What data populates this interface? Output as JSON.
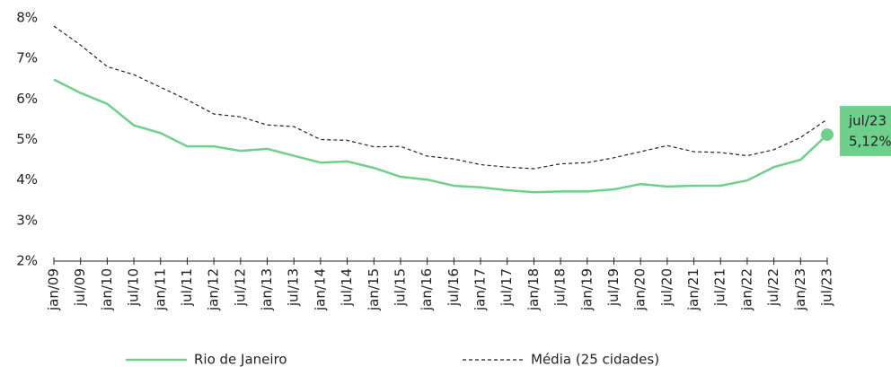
{
  "chart_data": {
    "type": "line",
    "categories": [
      "jan/09",
      "jul/09",
      "jan/10",
      "jul/10",
      "jan/11",
      "jul/11",
      "jan/12",
      "jul/12",
      "jan/13",
      "jul/13",
      "jan/14",
      "jul/14",
      "jan/15",
      "jul/15",
      "jan/16",
      "jul/16",
      "jan/17",
      "jul/17",
      "jan/18",
      "jul/18",
      "jan/19",
      "jul/19",
      "jan/20",
      "jul/20",
      "jan/21",
      "jul/21",
      "jan/22",
      "jul/22",
      "jan/23",
      "jul/23"
    ],
    "series": [
      {
        "name": "Rio de Janeiro",
        "color": "#6fd08c",
        "dash": false,
        "values": [
          6.48,
          6.15,
          5.88,
          5.35,
          5.16,
          4.83,
          4.83,
          4.72,
          4.77,
          4.6,
          4.43,
          4.46,
          4.3,
          4.08,
          4.01,
          3.86,
          3.82,
          3.75,
          3.7,
          3.72,
          3.72,
          3.77,
          3.9,
          3.84,
          3.86,
          3.86,
          3.99,
          4.32,
          4.5,
          5.12
        ]
      },
      {
        "name": "Média (25 cidades)",
        "color": "#222222",
        "dash": true,
        "values": [
          7.8,
          7.33,
          6.8,
          6.6,
          6.29,
          5.98,
          5.63,
          5.56,
          5.36,
          5.32,
          5.0,
          4.98,
          4.82,
          4.83,
          4.59,
          4.52,
          4.38,
          4.32,
          4.28,
          4.4,
          4.43,
          4.55,
          4.7,
          4.85,
          4.7,
          4.68,
          4.6,
          4.75,
          5.05,
          5.5
        ]
      }
    ],
    "annotation": {
      "value": 5.12,
      "label": "5,12%"
    },
    "ylim": [
      2,
      8
    ],
    "yticks": [
      {
        "value": 2,
        "label": "2%"
      },
      {
        "value": 3,
        "label": "3%"
      },
      {
        "value": 4,
        "label": "4%"
      },
      {
        "value": 5,
        "label": "5%"
      },
      {
        "value": 6,
        "label": "6%"
      },
      {
        "value": 7,
        "label": "7%"
      },
      {
        "value": 8,
        "label": "8%"
      }
    ],
    "grid": false,
    "legend": "bottom"
  }
}
